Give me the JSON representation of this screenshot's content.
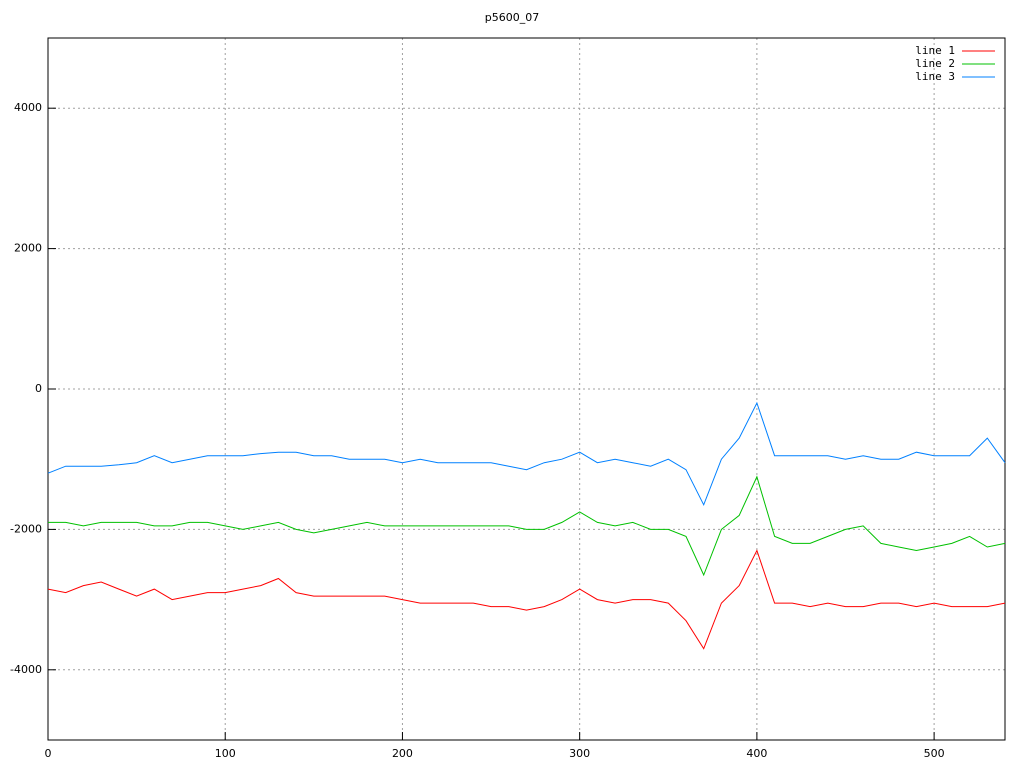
{
  "chart_data": {
    "type": "line",
    "title": "p5600_07",
    "x": [
      0,
      10,
      20,
      30,
      40,
      50,
      60,
      70,
      80,
      90,
      100,
      110,
      120,
      130,
      140,
      150,
      160,
      170,
      180,
      190,
      200,
      210,
      220,
      230,
      240,
      250,
      260,
      270,
      280,
      290,
      300,
      310,
      320,
      330,
      340,
      350,
      360,
      370,
      380,
      390,
      400,
      410,
      420,
      430,
      440,
      450,
      460,
      470,
      480,
      490,
      500,
      510,
      520,
      530,
      540
    ],
    "series": [
      {
        "name": "line 1",
        "color": "#ff0000",
        "values": [
          -2850,
          -2900,
          -2800,
          -2750,
          -2850,
          -2950,
          -2850,
          -3000,
          -2950,
          -2900,
          -2900,
          -2850,
          -2800,
          -2700,
          -2900,
          -2950,
          -2950,
          -2950,
          -2950,
          -2950,
          -3000,
          -3050,
          -3050,
          -3050,
          -3050,
          -3100,
          -3100,
          -3150,
          -3100,
          -3000,
          -2850,
          -3000,
          -3050,
          -3000,
          -3000,
          -3050,
          -3300,
          -3700,
          -3050,
          -2800,
          -2300,
          -3050,
          -3050,
          -3100,
          -3050,
          -3100,
          -3100,
          -3050,
          -3050,
          -3100,
          -3050,
          -3100,
          -3100,
          -3100,
          -3050
        ]
      },
      {
        "name": "line 2",
        "color": "#00c000",
        "values": [
          -1900,
          -1900,
          -1950,
          -1900,
          -1900,
          -1900,
          -1950,
          -1950,
          -1900,
          -1900,
          -1950,
          -2000,
          -1950,
          -1900,
          -2000,
          -2050,
          -2000,
          -1950,
          -1900,
          -1950,
          -1950,
          -1950,
          -1950,
          -1950,
          -1950,
          -1950,
          -1950,
          -2000,
          -2000,
          -1900,
          -1750,
          -1900,
          -1950,
          -1900,
          -2000,
          -2000,
          -2100,
          -2650,
          -2000,
          -1800,
          -1250,
          -2100,
          -2200,
          -2200,
          -2100,
          -2000,
          -1950,
          -2200,
          -2250,
          -2300,
          -2250,
          -2200,
          -2100,
          -2250,
          -2200
        ]
      },
      {
        "name": "line 3",
        "color": "#0080ff",
        "values": [
          -1200,
          -1100,
          -1100,
          -1100,
          -1080,
          -1050,
          -950,
          -1050,
          -1000,
          -950,
          -950,
          -950,
          -920,
          -900,
          -900,
          -950,
          -950,
          -1000,
          -1000,
          -1000,
          -1050,
          -1000,
          -1050,
          -1050,
          -1050,
          -1050,
          -1100,
          -1150,
          -1050,
          -1000,
          -900,
          -1050,
          -1000,
          -1050,
          -1100,
          -1000,
          -1150,
          -1650,
          -1000,
          -700,
          -200,
          -950,
          -950,
          -950,
          -950,
          -1000,
          -950,
          -1000,
          -1000,
          -900,
          -950,
          -950,
          -950,
          -700,
          -1050
        ]
      }
    ],
    "xlim": [
      0,
      540
    ],
    "ylim": [
      -5000,
      5000
    ],
    "xticks": [
      0,
      100,
      200,
      300,
      400,
      500
    ],
    "yticks": [
      -4000,
      -2000,
      0,
      2000,
      4000
    ],
    "grid": true,
    "legend": "top-right"
  }
}
